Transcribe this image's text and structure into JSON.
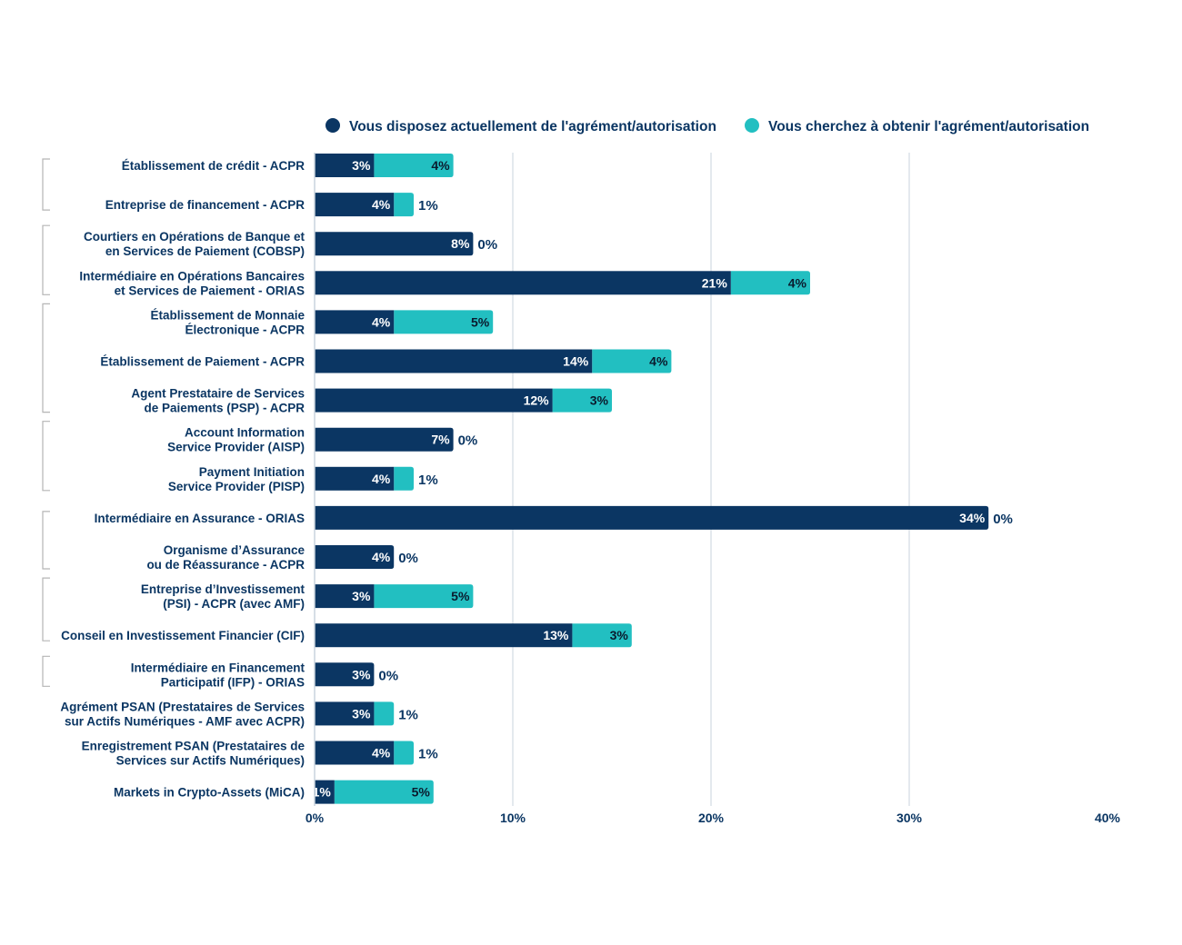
{
  "chart_data": {
    "type": "bar",
    "orientation": "horizontal",
    "stacked": true,
    "title": "",
    "xlabel": "",
    "ylabel": "",
    "xlim": [
      0,
      40
    ],
    "x_ticks": [
      0,
      10,
      20,
      30,
      40
    ],
    "x_tick_labels": [
      "0%",
      "10%",
      "20%",
      "30%",
      "40%"
    ],
    "grid": true,
    "legend_position": "top",
    "categories": [
      [
        "Établissement de crédit - ACPR"
      ],
      [
        "Entreprise de financement - ACPR"
      ],
      [
        "Courtiers en Opérations de Banque et",
        "en Services de Paiement (COBSP)"
      ],
      [
        "Intermédiaire en Opérations Bancaires",
        "et Services de Paiement - ORIAS"
      ],
      [
        "Établissement de Monnaie",
        "Électronique - ACPR"
      ],
      [
        "Établissement de Paiement - ACPR"
      ],
      [
        "Agent Prestataire de Services",
        "de Paiements (PSP) - ACPR"
      ],
      [
        "Account Information",
        "Service Provider (AISP)"
      ],
      [
        "Payment Initiation",
        "Service Provider (PISP)"
      ],
      [
        "Intermédiaire en Assurance - ORIAS"
      ],
      [
        "Organisme d’Assurance",
        "ou de Réassurance - ACPR"
      ],
      [
        "Entreprise d’Investissement",
        "(PSI) - ACPR (avec AMF)"
      ],
      [
        "Conseil en Investissement Financier (CIF)"
      ],
      [
        "Intermédiaire en Financement",
        "Participatif (IFP) - ORIAS"
      ],
      [
        "Agrément PSAN (Prestataires de Services",
        "sur Actifs Numériques - AMF avec ACPR)"
      ],
      [
        "Enregistrement PSAN (Prestataires de",
        "Services sur Actifs Numériques)"
      ],
      [
        "Markets in Crypto-Assets (MiCA)"
      ]
    ],
    "groups": [
      {
        "from": 0,
        "to": 1
      },
      {
        "from": 2,
        "to": 3
      },
      {
        "from": 4,
        "to": 6
      },
      {
        "from": 7,
        "to": 8
      },
      {
        "from": 9,
        "to": 10
      },
      {
        "from": 11,
        "to": 12
      },
      {
        "from": 13,
        "to": 13
      }
    ],
    "series": [
      {
        "name": "Vous disposez actuellement de l'agrément/autorisation",
        "color": "#0b3663",
        "values": [
          3,
          4,
          8,
          21,
          4,
          14,
          12,
          7,
          4,
          34,
          4,
          3,
          13,
          3,
          3,
          4,
          1
        ]
      },
      {
        "name": "Vous cherchez à obtenir l'agrément/autorisation",
        "color": "#22bfc1",
        "values": [
          4,
          1,
          0,
          4,
          5,
          4,
          3,
          0,
          1,
          0,
          0,
          5,
          3,
          0,
          1,
          1,
          5
        ]
      }
    ],
    "value_suffix": "%"
  },
  "colors": {
    "navy": "#0b3663",
    "teal": "#22bfc1",
    "grid": "#c9d3dd",
    "bracket": "#b5b5b5"
  }
}
